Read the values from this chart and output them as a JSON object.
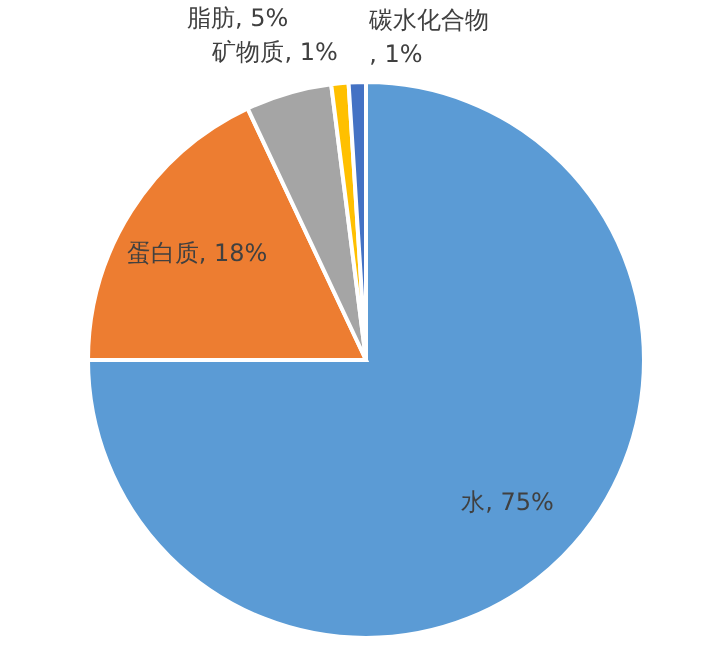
{
  "chart_data": {
    "type": "pie",
    "categories": [
      "水",
      "蛋白质",
      "脂肪",
      "矿物质",
      "碳水化合物"
    ],
    "values": [
      75,
      18,
      5,
      1,
      1
    ],
    "colors": [
      "#5b9bd5",
      "#ed7d31",
      "#a5a5a5",
      "#ffc000",
      "#4472c4"
    ],
    "value_labels": [
      ", 75%",
      ", 18%",
      ", 5%",
      ", 1%",
      ", 1%"
    ]
  }
}
